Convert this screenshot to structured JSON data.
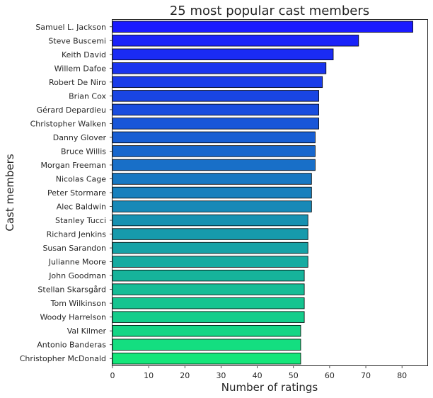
{
  "chart_data": {
    "type": "bar",
    "orientation": "horizontal",
    "title": "25 most popular cast members",
    "xlabel": "Number of ratings",
    "ylabel": "Cast members",
    "xlim": [
      0,
      87
    ],
    "xticks": [
      0,
      10,
      20,
      30,
      40,
      50,
      60,
      70,
      80
    ],
    "grid": false,
    "color_start": "#1a1aff",
    "color_end": "#14e67a",
    "categories": [
      "Samuel L. Jackson",
      "Steve Buscemi",
      "Keith David",
      "Willem Dafoe",
      "Robert De Niro",
      "Brian Cox",
      "Gérard Depardieu",
      "Christopher Walken",
      "Danny Glover",
      "Bruce Willis",
      "Morgan Freeman",
      "Nicolas Cage",
      "Peter Stormare",
      "Alec Baldwin",
      "Stanley Tucci",
      "Richard Jenkins",
      "Susan Sarandon",
      "Julianne Moore",
      "John Goodman",
      "Stellan Skarsgård",
      "Tom Wilkinson",
      "Woody Harrelson",
      "Val Kilmer",
      "Antonio Banderas",
      "Christopher McDonald"
    ],
    "values": [
      83,
      68,
      61,
      59,
      58,
      57,
      57,
      57,
      56,
      56,
      56,
      55,
      55,
      55,
      54,
      54,
      54,
      54,
      53,
      53,
      53,
      53,
      52,
      52,
      52
    ]
  }
}
